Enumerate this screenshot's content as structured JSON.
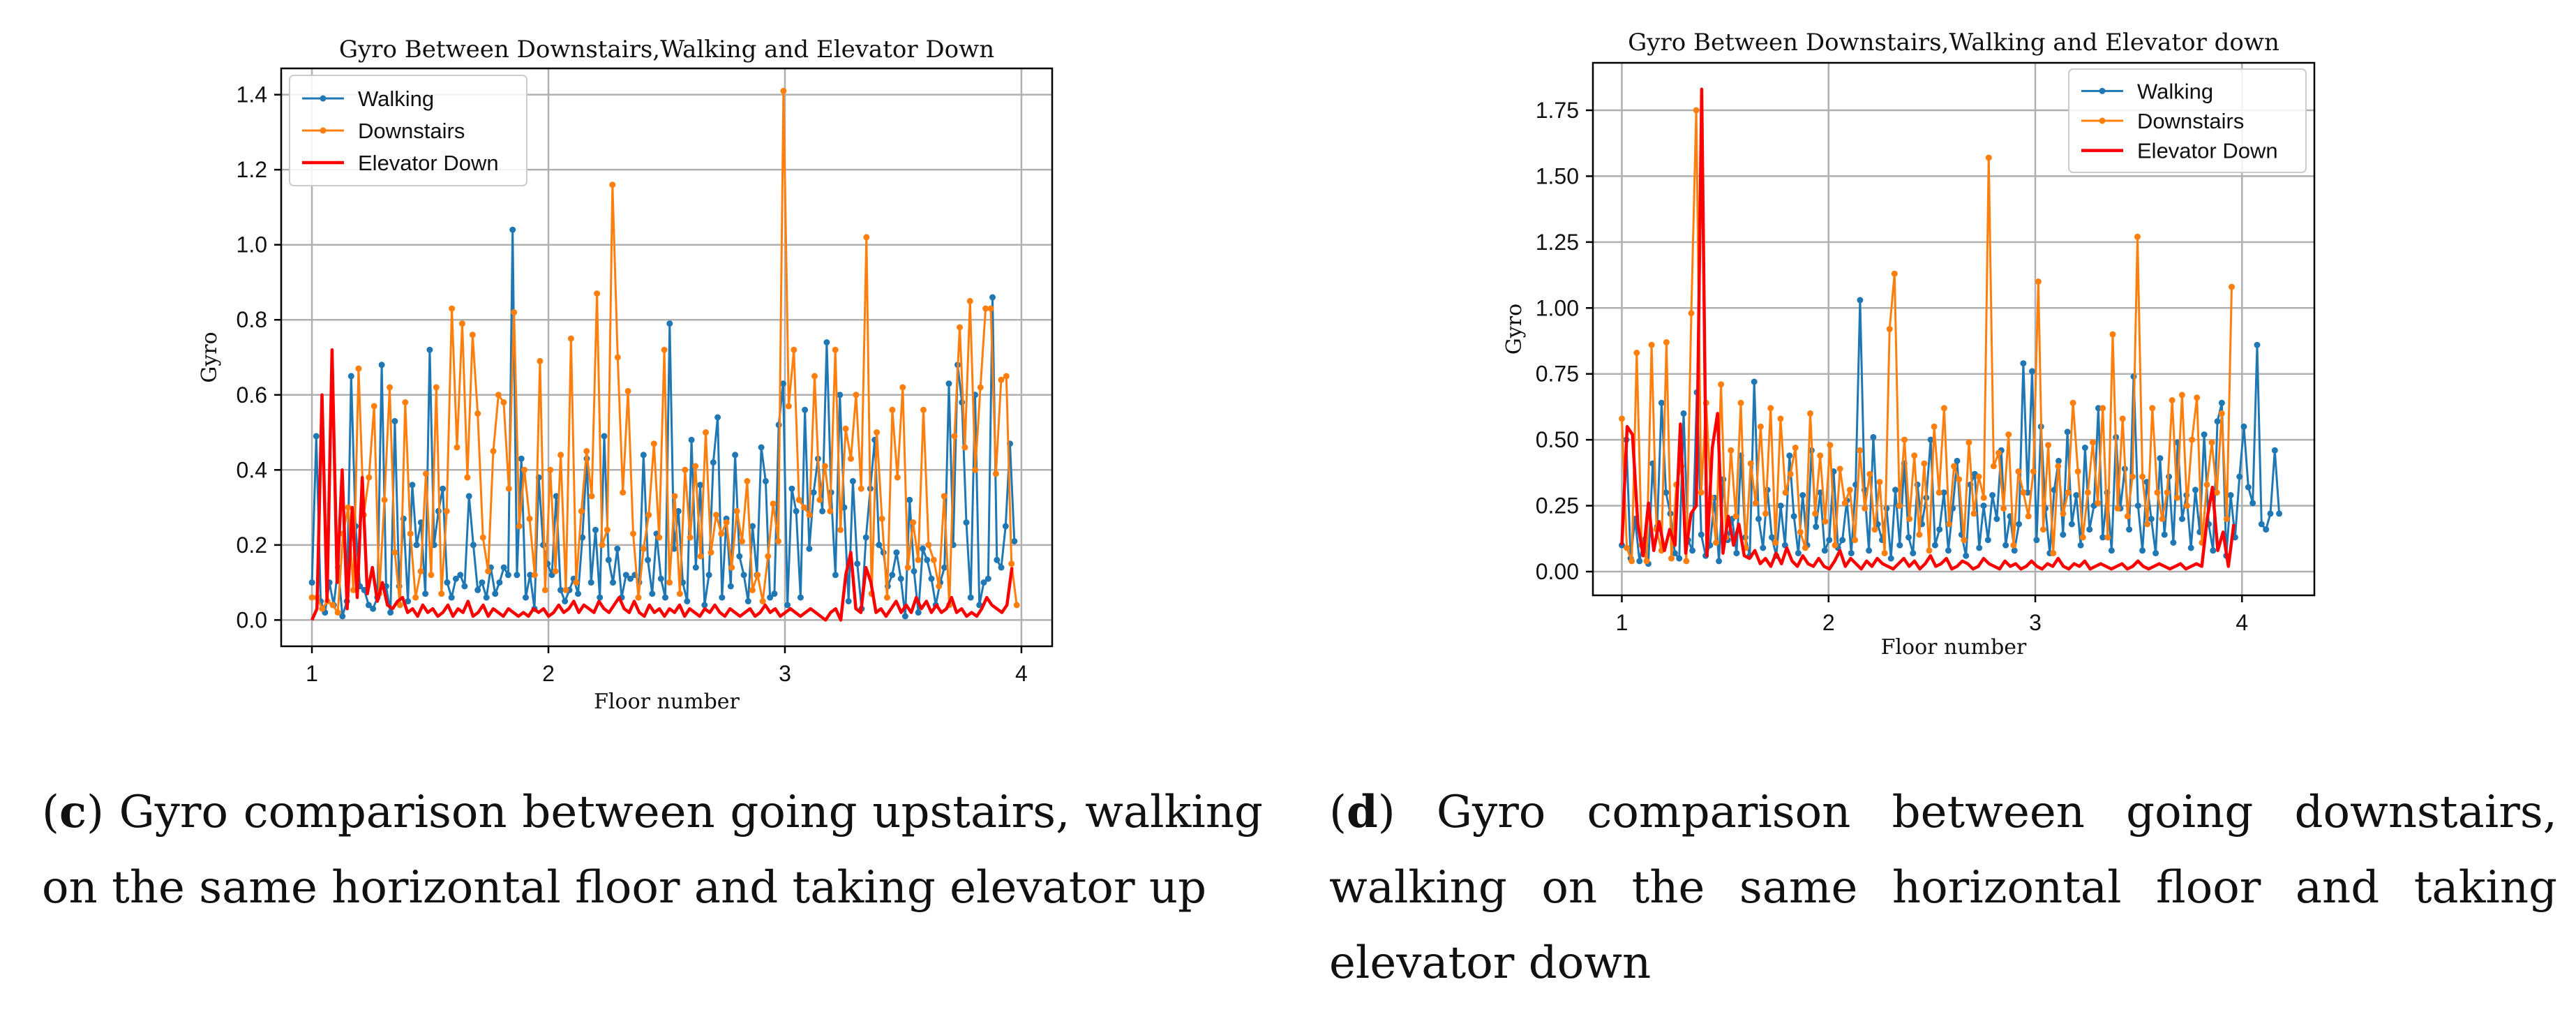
{
  "chart_data": [
    {
      "type": "line",
      "title": "Gyro Between Downstairs,Walking and Elevator Down",
      "xlabel": "Floor number",
      "ylabel": "Gyro",
      "xlim": [
        0.87,
        4.13
      ],
      "ylim": [
        -0.07,
        1.47
      ],
      "xticks": [
        1,
        2,
        3,
        4
      ],
      "yticks": [
        0.0,
        0.2,
        0.4,
        0.6,
        0.8,
        1.0,
        1.2,
        1.4
      ],
      "ytick_format": 1,
      "grid": true,
      "legend_position": "top-left",
      "series": [
        {
          "name": "Walking",
          "color": "#1f77b4",
          "marker": true,
          "x_start": 1.0,
          "x_end": 3.97,
          "values": [
            0.1,
            0.49,
            0.05,
            0.02,
            0.1,
            0.04,
            0.14,
            0.01,
            0.05,
            0.65,
            0.25,
            0.09,
            0.08,
            0.04,
            0.03,
            0.06,
            0.68,
            0.09,
            0.02,
            0.53,
            0.09,
            0.27,
            0.05,
            0.36,
            0.2,
            0.26,
            0.07,
            0.72,
            0.2,
            0.29,
            0.35,
            0.1,
            0.06,
            0.11,
            0.12,
            0.09,
            0.33,
            0.2,
            0.08,
            0.1,
            0.06,
            0.14,
            0.07,
            0.1,
            0.14,
            0.12,
            1.04,
            0.12,
            0.43,
            0.06,
            0.12,
            0.03,
            0.38,
            0.2,
            0.15,
            0.12,
            0.33,
            0.08,
            0.05,
            0.08,
            0.11,
            0.07,
            0.22,
            0.43,
            0.1,
            0.24,
            0.06,
            0.49,
            0.16,
            0.1,
            0.19,
            0.06,
            0.12,
            0.11,
            0.12,
            0.1,
            0.44,
            0.16,
            0.07,
            0.23,
            0.11,
            0.06,
            0.79,
            0.19,
            0.29,
            0.1,
            0.05,
            0.48,
            0.14,
            0.36,
            0.04,
            0.12,
            0.42,
            0.54,
            0.06,
            0.27,
            0.09,
            0.44,
            0.17,
            0.12,
            0.05,
            0.25,
            0.12,
            0.46,
            0.37,
            0.06,
            0.07,
            0.52,
            0.63,
            0.04,
            0.35,
            0.29,
            0.06,
            0.56,
            0.19,
            0.34,
            0.43,
            0.29,
            0.74,
            0.34,
            0.12,
            0.6,
            0.3,
            0.05,
            0.37,
            0.15,
            0.03,
            0.22,
            0.35,
            0.48,
            0.2,
            0.18,
            0.09,
            0.12,
            0.18,
            0.11,
            0.01,
            0.32,
            0.13,
            0.02,
            0.19,
            0.16,
            0.11,
            0.04,
            0.1,
            0.14,
            0.63,
            0.2,
            0.68,
            0.58,
            0.26,
            0.06,
            0.6,
            0.04,
            0.1,
            0.11,
            0.86,
            0.16,
            0.14,
            0.25,
            0.47,
            0.21
          ]
        },
        {
          "name": "Downstairs",
          "color": "#ff7f0e",
          "marker": true,
          "x_start": 1.0,
          "x_end": 3.98,
          "values": [
            0.06,
            0.06,
            0.03,
            0.05,
            0.04,
            0.02,
            0.23,
            0.3,
            0.08,
            0.67,
            0.28,
            0.38,
            0.57,
            0.07,
            0.32,
            0.62,
            0.18,
            0.04,
            0.58,
            0.23,
            0.06,
            0.13,
            0.39,
            0.12,
            0.62,
            0.07,
            0.29,
            0.83,
            0.46,
            0.79,
            0.38,
            0.76,
            0.55,
            0.22,
            0.13,
            0.45,
            0.6,
            0.58,
            0.35,
            0.82,
            0.25,
            0.4,
            0.27,
            0.12,
            0.69,
            0.08,
            0.4,
            0.13,
            0.44,
            0.08,
            0.75,
            0.1,
            0.29,
            0.45,
            0.33,
            0.87,
            0.2,
            0.24,
            1.16,
            0.7,
            0.34,
            0.61,
            0.23,
            0.06,
            0.19,
            0.28,
            0.47,
            0.22,
            0.72,
            0.1,
            0.33,
            0.07,
            0.4,
            0.22,
            0.41,
            0.17,
            0.5,
            0.18,
            0.28,
            0.23,
            0.26,
            0.14,
            0.29,
            0.21,
            0.37,
            0.08,
            0.12,
            0.05,
            0.17,
            0.31,
            0.21,
            1.41,
            0.57,
            0.72,
            0.32,
            0.3,
            0.28,
            0.65,
            0.32,
            0.41,
            0.29,
            0.72,
            0.24,
            0.51,
            0.43,
            0.6,
            0.35,
            1.02,
            0.07,
            0.5,
            0.27,
            0.06,
            0.56,
            0.38,
            0.62,
            0.14,
            0.26,
            0.16,
            0.56,
            0.2,
            0.16,
            0.09,
            0.33,
            0.04,
            0.49,
            0.78,
            0.46,
            0.85,
            0.4,
            0.62,
            0.83,
            0.83,
            0.39,
            0.64,
            0.65,
            0.15,
            0.04
          ]
        },
        {
          "name": "Elevator Down",
          "color": "#ff0000",
          "marker": false,
          "x_start": 1.0,
          "x_end": 3.96,
          "values": [
            0.0,
            0.03,
            0.6,
            0.05,
            0.72,
            0.1,
            0.4,
            0.03,
            0.3,
            0.06,
            0.38,
            0.07,
            0.14,
            0.05,
            0.1,
            0.04,
            0.03,
            0.05,
            0.06,
            0.02,
            0.03,
            0.01,
            0.04,
            0.02,
            0.03,
            0.01,
            0.02,
            0.04,
            0.01,
            0.03,
            0.02,
            0.05,
            0.01,
            0.02,
            0.04,
            0.01,
            0.03,
            0.02,
            0.01,
            0.03,
            0.02,
            0.01,
            0.02,
            0.01,
            0.03,
            0.02,
            0.03,
            0.01,
            0.02,
            0.04,
            0.02,
            0.03,
            0.05,
            0.02,
            0.04,
            0.03,
            0.02,
            0.05,
            0.03,
            0.02,
            0.04,
            0.06,
            0.03,
            0.02,
            0.05,
            0.02,
            0.01,
            0.04,
            0.02,
            0.03,
            0.01,
            0.03,
            0.02,
            0.04,
            0.01,
            0.03,
            0.02,
            0.01,
            0.03,
            0.02,
            0.04,
            0.02,
            0.01,
            0.03,
            0.02,
            0.01,
            0.02,
            0.03,
            0.01,
            0.02,
            0.04,
            0.02,
            0.03,
            0.01,
            0.02,
            0.03,
            0.02,
            0.01,
            0.02,
            0.03,
            0.02,
            0.01,
            0.0,
            0.02,
            0.03,
            0.0,
            0.12,
            0.18,
            0.03,
            0.02,
            0.14,
            0.1,
            0.02,
            0.03,
            0.01,
            0.03,
            0.05,
            0.02,
            0.04,
            0.02,
            0.06,
            0.03,
            0.05,
            0.02,
            0.04,
            0.02,
            0.03,
            0.06,
            0.02,
            0.03,
            0.01,
            0.02,
            0.01,
            0.03,
            0.06,
            0.04,
            0.03,
            0.02,
            0.04,
            0.14
          ]
        }
      ]
    },
    {
      "type": "line",
      "title": "Gyro Between Downstairs,Walking and Elevator down",
      "xlabel": "Floor number",
      "ylabel": "Gyro",
      "xlim": [
        0.86,
        4.35
      ],
      "ylim": [
        -0.09,
        1.93
      ],
      "xticks": [
        1,
        2,
        3,
        4
      ],
      "yticks": [
        0.0,
        0.25,
        0.5,
        0.75,
        1.0,
        1.25,
        1.5,
        1.75
      ],
      "ytick_format": 2,
      "grid": true,
      "legend_position": "top-right",
      "series": [
        {
          "name": "Walking",
          "color": "#1f77b4",
          "marker": true,
          "x_start": 1.0,
          "x_end": 4.18,
          "values": [
            0.1,
            0.5,
            0.05,
            0.2,
            0.04,
            0.12,
            0.03,
            0.41,
            0.17,
            0.64,
            0.3,
            0.22,
            0.07,
            0.05,
            0.6,
            0.12,
            0.08,
            0.68,
            0.14,
            0.06,
            0.1,
            0.28,
            0.04,
            0.35,
            0.12,
            0.2,
            0.07,
            0.44,
            0.13,
            0.06,
            0.72,
            0.2,
            0.09,
            0.31,
            0.13,
            0.06,
            0.25,
            0.1,
            0.44,
            0.21,
            0.07,
            0.29,
            0.1,
            0.46,
            0.17,
            0.3,
            0.08,
            0.12,
            0.38,
            0.09,
            0.12,
            0.27,
            0.07,
            0.33,
            1.03,
            0.31,
            0.08,
            0.51,
            0.18,
            0.12,
            0.24,
            0.05,
            0.31,
            0.1,
            0.41,
            0.13,
            0.07,
            0.33,
            0.18,
            0.28,
            0.5,
            0.1,
            0.16,
            0.3,
            0.08,
            0.24,
            0.42,
            0.14,
            0.06,
            0.33,
            0.37,
            0.09,
            0.25,
            0.12,
            0.29,
            0.2,
            0.46,
            0.1,
            0.21,
            0.08,
            0.18,
            0.79,
            0.3,
            0.76,
            0.12,
            0.55,
            0.24,
            0.07,
            0.31,
            0.42,
            0.14,
            0.53,
            0.18,
            0.29,
            0.1,
            0.47,
            0.16,
            0.25,
            0.62,
            0.13,
            0.3,
            0.08,
            0.51,
            0.24,
            0.39,
            0.16,
            0.74,
            0.25,
            0.08,
            0.34,
            0.2,
            0.07,
            0.43,
            0.14,
            0.36,
            0.11,
            0.49,
            0.2,
            0.29,
            0.09,
            0.31,
            0.15,
            0.52,
            0.18,
            0.08,
            0.57,
            0.64,
            0.06,
            0.29,
            0.13,
            0.36,
            0.55,
            0.32,
            0.26,
            0.86,
            0.18,
            0.16,
            0.22,
            0.46,
            0.22
          ]
        },
        {
          "name": "Downstairs",
          "color": "#ff7f0e",
          "marker": true,
          "x_start": 1.0,
          "x_end": 3.95,
          "values": [
            0.58,
            0.09,
            0.04,
            0.83,
            0.1,
            0.04,
            0.86,
            0.16,
            0.08,
            0.87,
            0.05,
            0.33,
            0.4,
            0.04,
            0.98,
            1.75,
            0.3,
            0.64,
            0.28,
            0.11,
            0.71,
            0.13,
            0.46,
            0.21,
            0.64,
            0.09,
            0.41,
            0.26,
            0.55,
            0.22,
            0.62,
            0.11,
            0.58,
            0.3,
            0.37,
            0.47,
            0.15,
            0.09,
            0.6,
            0.22,
            0.44,
            0.19,
            0.48,
            0.1,
            0.39,
            0.26,
            0.31,
            0.12,
            0.46,
            0.24,
            0.37,
            0.16,
            0.34,
            0.07,
            0.92,
            1.13,
            0.25,
            0.5,
            0.2,
            0.44,
            0.14,
            0.41,
            0.08,
            0.55,
            0.3,
            0.62,
            0.18,
            0.4,
            0.35,
            0.12,
            0.49,
            0.22,
            0.36,
            0.28,
            1.57,
            0.4,
            0.45,
            0.24,
            0.52,
            0.1,
            0.38,
            0.3,
            0.21,
            0.38,
            1.1,
            0.16,
            0.48,
            0.07,
            0.4,
            0.22,
            0.3,
            0.64,
            0.38,
            0.13,
            0.3,
            0.49,
            0.26,
            0.62,
            0.13,
            0.9,
            0.24,
            0.58,
            0.21,
            0.36,
            1.27,
            0.36,
            0.18,
            0.62,
            0.3,
            0.2,
            0.3,
            0.65,
            0.28,
            0.67,
            0.25,
            0.5,
            0.66,
            0.11,
            0.33,
            0.49,
            0.3,
            0.6,
            0.2,
            1.08
          ]
        },
        {
          "name": "Elevator Down",
          "color": "#ff0000",
          "marker": false,
          "x_start": 1.0,
          "x_end": 3.96,
          "values": [
            0.1,
            0.55,
            0.52,
            0.18,
            0.06,
            0.26,
            0.08,
            0.19,
            0.08,
            0.16,
            0.1,
            0.56,
            0.07,
            0.22,
            0.25,
            1.83,
            0.06,
            0.47,
            0.6,
            0.07,
            0.21,
            0.1,
            0.18,
            0.06,
            0.05,
            0.08,
            0.03,
            0.05,
            0.02,
            0.07,
            0.03,
            0.09,
            0.04,
            0.02,
            0.06,
            0.03,
            0.02,
            0.05,
            0.02,
            0.01,
            0.04,
            0.08,
            0.02,
            0.05,
            0.03,
            0.01,
            0.04,
            0.02,
            0.05,
            0.03,
            0.02,
            0.01,
            0.03,
            0.05,
            0.02,
            0.04,
            0.01,
            0.03,
            0.06,
            0.02,
            0.03,
            0.05,
            0.01,
            0.02,
            0.04,
            0.03,
            0.01,
            0.02,
            0.05,
            0.03,
            0.02,
            0.01,
            0.04,
            0.02,
            0.03,
            0.01,
            0.02,
            0.04,
            0.02,
            0.01,
            0.03,
            0.02,
            0.05,
            0.02,
            0.01,
            0.03,
            0.02,
            0.04,
            0.01,
            0.02,
            0.03,
            0.02,
            0.01,
            0.02,
            0.03,
            0.01,
            0.02,
            0.04,
            0.02,
            0.01,
            0.02,
            0.03,
            0.02,
            0.01,
            0.02,
            0.03,
            0.01,
            0.02,
            0.03,
            0.02,
            0.2,
            0.32,
            0.08,
            0.15,
            0.02,
            0.18
          ]
        }
      ]
    }
  ],
  "captions": [
    {
      "id": "c",
      "prefix": "(",
      "letter": "c",
      "suffix": ")",
      "text": " Gyro comparison between going upstairs, walking on the same horizontal floor and taking elevator up"
    },
    {
      "id": "d",
      "prefix": "(",
      "letter": "d",
      "suffix": ")",
      "text": " Gyro comparison between going downstairs, walking on the same horizontal floor and taking elevator down"
    }
  ]
}
